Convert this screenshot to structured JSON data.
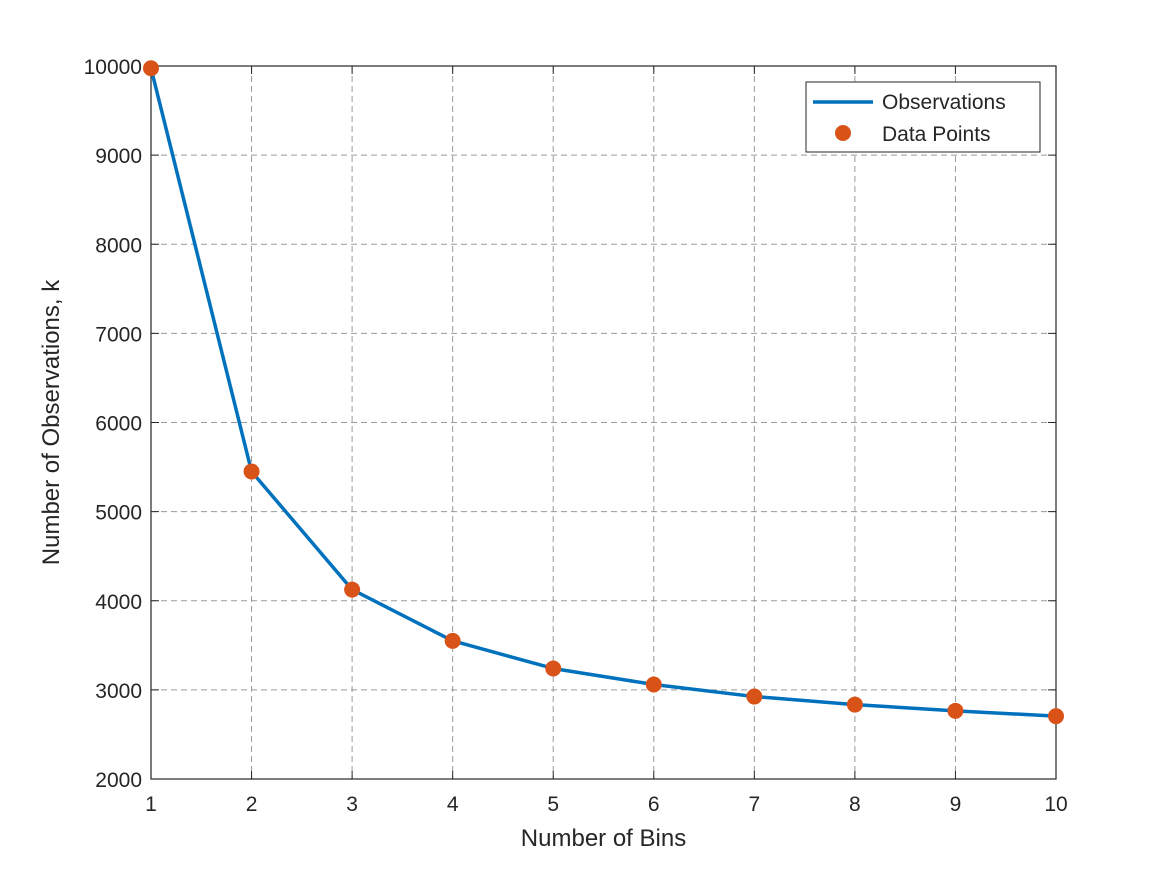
{
  "chart_data": {
    "type": "line",
    "title": "",
    "xlabel": "Number of Bins",
    "ylabel": "Number of Observations, k",
    "x": [
      1,
      2,
      3,
      4,
      5,
      6,
      7,
      8,
      9,
      10
    ],
    "series": [
      {
        "name": "Observations",
        "style": "line",
        "color": "#0072BD",
        "values": [
          9975,
          5450,
          4125,
          3550,
          3240,
          3060,
          2925,
          2835,
          2765,
          2705
        ]
      },
      {
        "name": "Data Points",
        "style": "markers",
        "color": "#D95319",
        "values": [
          9975,
          5450,
          4125,
          3550,
          3240,
          3060,
          2925,
          2835,
          2765,
          2705
        ]
      }
    ],
    "xlim": [
      1,
      10
    ],
    "ylim": [
      2000,
      10000
    ],
    "xticks": [
      "1",
      "2",
      "3",
      "4",
      "5",
      "6",
      "7",
      "8",
      "9",
      "10"
    ],
    "yticks": [
      "2000",
      "3000",
      "4000",
      "5000",
      "6000",
      "7000",
      "8000",
      "9000",
      "10000"
    ],
    "grid": true,
    "legend_position": "top-right"
  }
}
